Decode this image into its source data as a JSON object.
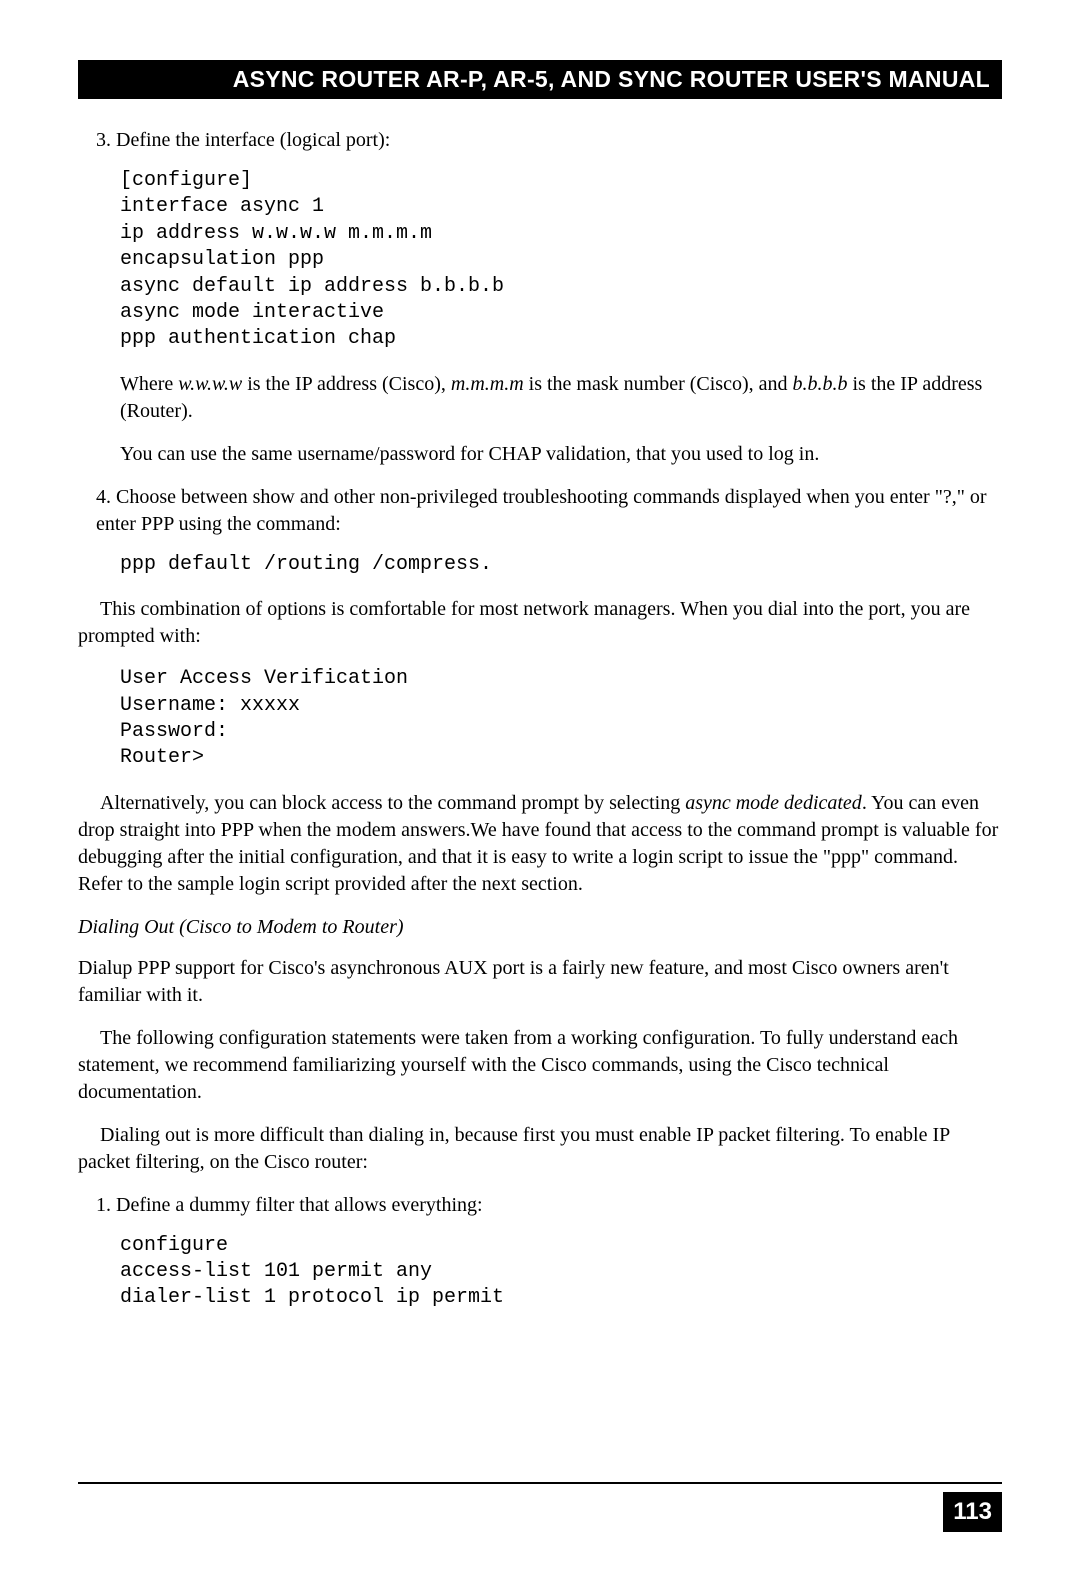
{
  "header": {
    "title": "ASYNC ROUTER AR-P, AR-5, AND SYNC ROUTER USER'S MANUAL"
  },
  "step3": {
    "num": "3.",
    "text": "Define the interface (logical port):",
    "code": "[configure]\ninterface async 1\nip address w.w.w.w m.m.m.m\nencapsulation ppp\nasync default ip address b.b.b.b\nasync mode interactive\nppp authentication chap",
    "where_pre": "Where ",
    "where_w": "w.w.w.w",
    "where_mid1": " is the IP address (Cisco), ",
    "where_m": "m.m.m.m",
    "where_mid2": " is the mask number (Cisco), and ",
    "where_b": "b.b.b.b",
    "where_post": " is the IP address (Router).",
    "chap": "You can use the same username/password for CHAP validation, that you used to log in."
  },
  "step4": {
    "num": "4.",
    "text": "Choose between show and other non-privileged troubleshooting commands displayed when you enter \"?,\" or enter PPP using the command:",
    "code": "ppp default /routing /compress."
  },
  "combo_para": "This combination of options is comfortable for most network managers. When you dial into the port, you are prompted with:",
  "prompt_code": "User Access Verification\nUsername: xxxxx\nPassword:\nRouter>",
  "alt_pre": "Alternatively, you can block access to the command prompt by selecting ",
  "alt_italic": "async mode dedicated",
  "alt_post": ". You can even drop straight into PPP when the modem answers.We have found that access to the command prompt is valuable for debugging after the initial configuration, and that it is easy to write a login script to issue the \"ppp\" command. Refer to the sample login script provided after the next section.",
  "subheading": "Dialing Out (Cisco to Modem to Router)",
  "dialup_para": "Dialup PPP support for Cisco's asynchronous AUX port is a fairly new feature, and most Cisco owners aren't familiar with it.",
  "config_para": "The following configuration statements were taken from a working configuration. To fully understand each statement, we recommend familiarizing yourself with the Cisco commands, using the Cisco technical documentation.",
  "dialout_para": "Dialing out is more difficult than dialing in, because first you must enable IP packet filtering. To enable IP packet filtering, on the Cisco router:",
  "step1b": {
    "num": "1.",
    "text": "Define a dummy filter that allows everything:",
    "code": "configure\naccess-list 101 permit any\ndialer-list 1 protocol ip permit"
  },
  "page_number": "113"
}
